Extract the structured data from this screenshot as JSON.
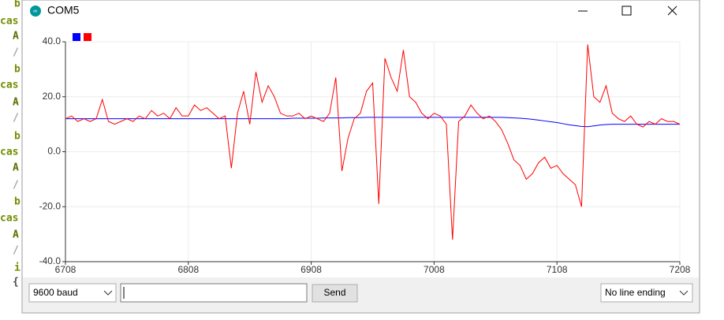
{
  "window": {
    "title": "COM5"
  },
  "editor_fragments": [
    "b",
    "cas",
    "A",
    "/",
    "b",
    "cas",
    "A",
    "/",
    "b",
    "cas",
    "A",
    "/",
    "b",
    "cas",
    "A",
    "/",
    "i",
    "{"
  ],
  "controls": {
    "baud": "9600 baud",
    "send": "Send",
    "line_ending": "No line ending"
  },
  "chart_data": {
    "type": "line",
    "x": [
      6708,
      6713,
      6718,
      6723,
      6728,
      6733,
      6738,
      6743,
      6748,
      6753,
      6758,
      6763,
      6768,
      6773,
      6778,
      6783,
      6788,
      6793,
      6798,
      6803,
      6808,
      6813,
      6818,
      6823,
      6828,
      6833,
      6838,
      6843,
      6848,
      6853,
      6858,
      6863,
      6868,
      6873,
      6878,
      6883,
      6888,
      6893,
      6898,
      6903,
      6908,
      6913,
      6918,
      6923,
      6928,
      6933,
      6938,
      6943,
      6948,
      6953,
      6958,
      6963,
      6968,
      6973,
      6978,
      6983,
      6988,
      6993,
      6998,
      7003,
      7008,
      7013,
      7018,
      7023,
      7028,
      7033,
      7038,
      7043,
      7048,
      7053,
      7058,
      7063,
      7068,
      7073,
      7078,
      7083,
      7088,
      7093,
      7098,
      7103,
      7108,
      7113,
      7118,
      7123,
      7128,
      7133,
      7138,
      7143,
      7148,
      7153,
      7158,
      7163,
      7168,
      7173,
      7178,
      7183,
      7188,
      7193,
      7198,
      7203,
      7208
    ],
    "series": [
      {
        "color": "#0000ff",
        "values": [
          12,
          12,
          12,
          12,
          12,
          12,
          12,
          12,
          12,
          12,
          12,
          12,
          12,
          12,
          12,
          12,
          12,
          12,
          12,
          12,
          12,
          12,
          12,
          12,
          12,
          12,
          12,
          12,
          12,
          12,
          12,
          12,
          12,
          12,
          12,
          12,
          12,
          12.2,
          12.2,
          12.2,
          12.2,
          12.2,
          12.3,
          12.3,
          12.3,
          12.3,
          12.4,
          12.4,
          12.4,
          12.5,
          12.5,
          12.5,
          12.5,
          12.5,
          12.5,
          12.5,
          12.5,
          12.5,
          12.5,
          12.5,
          12.5,
          12.5,
          12.5,
          12.5,
          12.5,
          12.5,
          12.5,
          12.5,
          12.5,
          12.5,
          12.5,
          12.5,
          12.4,
          12.3,
          12.2,
          12,
          11.8,
          11.5,
          11.2,
          10.9,
          10.6,
          10.2,
          9.8,
          9.5,
          9.2,
          9.1,
          9.4,
          9.7,
          9.9,
          10,
          10,
          10,
          10,
          10,
          10,
          10,
          10,
          10,
          10,
          10,
          10
        ]
      },
      {
        "color": "#ff0000",
        "values": [
          12,
          13,
          11,
          12,
          11,
          12,
          19,
          11,
          10,
          11,
          12,
          11,
          13,
          12,
          15,
          13,
          14,
          12,
          16,
          13,
          13,
          17,
          15,
          16,
          14,
          12,
          13,
          -6,
          14,
          22,
          10,
          29,
          18,
          24,
          20,
          14,
          13,
          13,
          14,
          12,
          13,
          12,
          11,
          14,
          27,
          -7,
          5,
          12,
          14,
          22,
          25,
          -19,
          34,
          27,
          22,
          37,
          20,
          18,
          14,
          12,
          14,
          13,
          10,
          -32,
          11,
          13,
          17,
          14,
          12,
          13,
          11,
          8,
          3,
          -3,
          -5,
          -10,
          -8,
          -4,
          -2,
          -6,
          -5,
          -8,
          -10,
          -12,
          -20,
          39,
          20,
          18,
          24,
          14,
          12,
          11,
          13,
          10,
          9,
          11,
          10,
          12,
          11,
          11,
          10
        ]
      }
    ],
    "xlim": [
      6708,
      7208
    ],
    "xticks": [
      6708,
      6808,
      6908,
      7008,
      7108,
      7208
    ],
    "ylim": [
      -40,
      40
    ],
    "yticks": [
      {
        "value": -40,
        "label": "-40.0"
      },
      {
        "value": -20,
        "label": "-20.0"
      },
      {
        "value": 0,
        "label": "0.0"
      },
      {
        "value": 20,
        "label": "20.0"
      },
      {
        "value": 40,
        "label": "40.0"
      }
    ],
    "grid": true
  }
}
